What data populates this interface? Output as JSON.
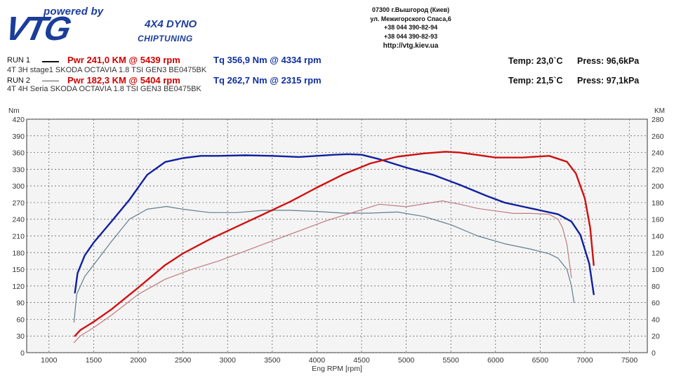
{
  "header": {
    "powered_by": "powered by",
    "brand": "VTG",
    "dyno": "4X4 DYNO",
    "chiptuning": "CHIPTUNING",
    "contact": {
      "address1": "07300 г.Вышгород (Киев)",
      "address2": "ул. Межигорского Спаса,6",
      "phone1": "+38 044 390-82-94",
      "phone2": "+38 044 390-82-93",
      "url": "http://vtg.kiev.ua"
    }
  },
  "runs": [
    {
      "label": "RUN 1",
      "pwr": "Pwr  241,0 KM @ 5439 rpm",
      "tq": "Tq 356,9 Nm @ 4334 rpm",
      "desc": "4T 3H  stage1 SKODA OCTAVIA 1.8 TSI GEN3 BE0475BK",
      "temp": "Temp: 23,0`C",
      "press": "Press: 96,6kPa"
    },
    {
      "label": "RUN 2",
      "pwr": "Pwr  182,3 KM @ 5404 rpm",
      "tq": "Tq 262,7 Nm @ 2315 rpm",
      "desc": "4T 4H Seria SKODA OCTAVIA 1.8 TSI GEN3 BE0475BK",
      "temp": "Temp: 21,5`C",
      "press": "Press: 97,1kPa"
    }
  ],
  "colors": {
    "run1_power": "#d01010",
    "run1_torque": "#1020a0",
    "run2_power": "#c07a80",
    "run2_torque": "#607e8e",
    "grid": "#555555",
    "plot_bg": "#f4f4f4"
  },
  "chart_data": {
    "type": "line",
    "xlabel": "Eng RPM [rpm]",
    "ylabel_left": "Nm",
    "ylabel_right": "KM",
    "xlim": [
      750,
      7700
    ],
    "ylim_left": [
      0,
      420
    ],
    "ylim_right": [
      0,
      280
    ],
    "x_ticks": [
      1000,
      1500,
      2000,
      2500,
      3000,
      3500,
      4000,
      4500,
      5000,
      5500,
      6000,
      6500,
      7000,
      7500
    ],
    "y_ticks_left": [
      0,
      30,
      60,
      90,
      120,
      150,
      180,
      210,
      240,
      270,
      300,
      330,
      360,
      390,
      420
    ],
    "y_ticks_right": [
      0,
      20,
      40,
      60,
      80,
      100,
      120,
      140,
      160,
      180,
      200,
      220,
      240,
      260,
      280
    ],
    "grid": true,
    "series": [
      {
        "name": "RUN 1 Tq",
        "axis": "left",
        "x": [
          1290,
          1320,
          1400,
          1500,
          1700,
          1900,
          2100,
          2300,
          2500,
          2700,
          2900,
          3200,
          3500,
          3800,
          4000,
          4200,
          4350,
          4500,
          4700,
          5000,
          5300,
          5600,
          5900,
          6100,
          6300,
          6500,
          6700,
          6850,
          6950,
          7050,
          7100
        ],
        "y": [
          108,
          143,
          175,
          198,
          236,
          275,
          320,
          343,
          350,
          354,
          354,
          355,
          354,
          352,
          354,
          356,
          357,
          356,
          348,
          333,
          320,
          302,
          282,
          270,
          263,
          256,
          249,
          236,
          212,
          160,
          105
        ]
      },
      {
        "name": "RUN 1 Pwr",
        "axis": "right",
        "x": [
          1290,
          1350,
          1500,
          1700,
          2000,
          2300,
          2500,
          2800,
          3100,
          3400,
          3700,
          4000,
          4300,
          4600,
          4900,
          5200,
          5439,
          5600,
          5800,
          6000,
          6300,
          6600,
          6800,
          6900,
          7000,
          7060,
          7100
        ],
        "y": [
          20,
          27,
          37,
          52,
          78,
          105,
          119,
          136,
          151,
          166,
          181,
          198,
          214,
          227,
          235,
          239,
          241,
          240,
          237,
          234,
          234,
          236,
          229,
          215,
          185,
          150,
          105
        ]
      },
      {
        "name": "RUN 2 Tq",
        "axis": "left",
        "x": [
          1280,
          1310,
          1400,
          1500,
          1700,
          1900,
          2100,
          2315,
          2500,
          2800,
          3100,
          3400,
          3700,
          4000,
          4300,
          4600,
          4900,
          5200,
          5500,
          5800,
          6100,
          6400,
          6600,
          6700,
          6800,
          6850,
          6880
        ],
        "y": [
          55,
          105,
          137,
          158,
          200,
          240,
          258,
          263,
          258,
          252,
          252,
          256,
          256,
          254,
          251,
          251,
          253,
          245,
          230,
          210,
          196,
          186,
          178,
          170,
          150,
          120,
          90
        ]
      },
      {
        "name": "RUN 2 Pwr",
        "axis": "right",
        "x": [
          1280,
          1350,
          1500,
          1700,
          2000,
          2300,
          2600,
          2900,
          3200,
          3500,
          3800,
          4100,
          4400,
          4700,
          5000,
          5404,
          5600,
          5800,
          6000,
          6200,
          6400,
          6600,
          6700,
          6750,
          6800,
          6850
        ],
        "y": [
          12,
          20,
          30,
          45,
          70,
          88,
          100,
          110,
          122,
          134,
          146,
          158,
          168,
          178,
          175,
          182,
          178,
          173,
          170,
          167,
          167,
          166,
          160,
          150,
          130,
          90
        ]
      }
    ]
  }
}
